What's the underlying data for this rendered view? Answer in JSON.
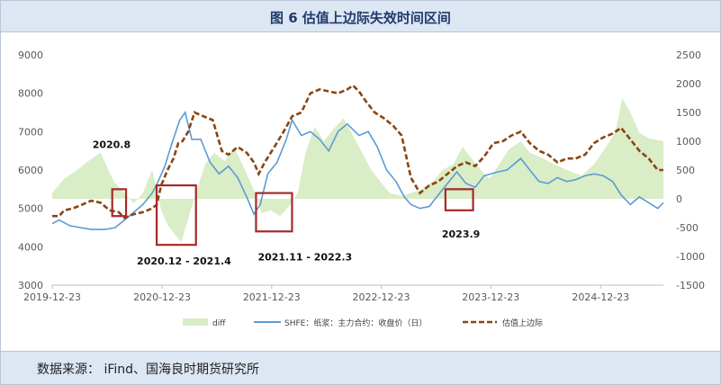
{
  "title": "图 6 估值上边际失效时间区间",
  "source": "数据来源： iFind、国海良时期货研究所",
  "chart_data": {
    "type": "line",
    "title": "图 6 估值上边际失效时间区间",
    "x_ticks": [
      "2019-12-23",
      "2020-12-23",
      "2021-12-23",
      "2022-12-23",
      "2023-12-23",
      "2024-12-23"
    ],
    "x_range": [
      "2019-12-23",
      "2025-07-20"
    ],
    "y_left_ticks": [
      "3000",
      "4000",
      "5000",
      "6000",
      "7000",
      "8000",
      "9000"
    ],
    "y_left_range": [
      3000,
      9000
    ],
    "y_right_ticks": [
      "-1500",
      "-1000",
      "-500",
      "0",
      "500",
      "1000",
      "1500",
      "2000",
      "2500"
    ],
    "y_right_range": [
      -1500,
      2500
    ],
    "grid": false,
    "legend_position": "bottom",
    "colors": {
      "diff": "#d9edc7",
      "shfe": "#5b9bd5",
      "upper": "#8b4513",
      "box": "#a52a2a"
    },
    "series": [
      {
        "name": "diff",
        "axis": "right",
        "style": "area",
        "points": [
          [
            "2019-12-23",
            100
          ],
          [
            "2020-02-01",
            350
          ],
          [
            "2020-03-15",
            500
          ],
          [
            "2020-04-20",
            650
          ],
          [
            "2020-06-01",
            800
          ],
          [
            "2020-07-15",
            300
          ],
          [
            "2020-08-20",
            100
          ],
          [
            "2020-09-20",
            -80
          ],
          [
            "2020-10-20",
            100
          ],
          [
            "2020-11-20",
            500
          ],
          [
            "2020-12-20",
            -200
          ],
          [
            "2021-01-10",
            -450
          ],
          [
            "2021-02-01",
            -600
          ],
          [
            "2021-02-25",
            -750
          ],
          [
            "2021-03-20",
            -350
          ],
          [
            "2021-04-15",
            100
          ],
          [
            "2021-05-15",
            600
          ],
          [
            "2021-06-15",
            800
          ],
          [
            "2021-07-20",
            650
          ],
          [
            "2021-08-20",
            900
          ],
          [
            "2021-09-25",
            500
          ],
          [
            "2021-10-25",
            150
          ],
          [
            "2021-11-20",
            -250
          ],
          [
            "2021-12-20",
            -200
          ],
          [
            "2022-01-20",
            -300
          ],
          [
            "2022-02-15",
            -150
          ],
          [
            "2022-03-20",
            100
          ],
          [
            "2022-04-15",
            800
          ],
          [
            "2022-05-15",
            1250
          ],
          [
            "2022-06-15",
            1000
          ],
          [
            "2022-07-15",
            1200
          ],
          [
            "2022-08-20",
            1400
          ],
          [
            "2022-09-20",
            1100
          ],
          [
            "2022-10-20",
            800
          ],
          [
            "2022-11-20",
            500
          ],
          [
            "2022-12-20",
            300
          ],
          [
            "2023-01-20",
            100
          ],
          [
            "2023-03-01",
            50
          ],
          [
            "2023-05-01",
            150
          ],
          [
            "2023-06-15",
            300
          ],
          [
            "2023-07-15",
            500
          ],
          [
            "2023-08-20",
            600
          ],
          [
            "2023-09-20",
            900
          ],
          [
            "2023-10-20",
            700
          ],
          [
            "2023-11-20",
            500
          ],
          [
            "2023-12-20",
            350
          ],
          [
            "2024-01-20",
            600
          ],
          [
            "2024-02-20",
            850
          ],
          [
            "2024-04-01",
            1000
          ],
          [
            "2024-05-01",
            800
          ],
          [
            "2024-06-15",
            700
          ],
          [
            "2024-07-20",
            600
          ],
          [
            "2024-09-01",
            500
          ],
          [
            "2024-10-20",
            400
          ],
          [
            "2024-12-01",
            600
          ],
          [
            "2025-01-10",
            900
          ],
          [
            "2025-02-10",
            1150
          ],
          [
            "2025-03-05",
            1750
          ],
          [
            "2025-04-01",
            1500
          ],
          [
            "2025-05-01",
            1150
          ],
          [
            "2025-06-01",
            1050
          ],
          [
            "2025-07-20",
            1000
          ]
        ]
      },
      {
        "name": "SHFE：纸浆：主力合约：收盘价（日）",
        "axis": "left",
        "style": "line",
        "points": [
          [
            "2019-12-23",
            4600
          ],
          [
            "2020-01-15",
            4700
          ],
          [
            "2020-02-20",
            4550
          ],
          [
            "2020-03-25",
            4500
          ],
          [
            "2020-05-01",
            4450
          ],
          [
            "2020-06-15",
            4450
          ],
          [
            "2020-07-20",
            4500
          ],
          [
            "2020-08-20",
            4700
          ],
          [
            "2020-09-20",
            4900
          ],
          [
            "2020-10-20",
            5100
          ],
          [
            "2020-11-20",
            5400
          ],
          [
            "2020-12-10",
            5700
          ],
          [
            "2021-01-01",
            6100
          ],
          [
            "2021-01-25",
            6700
          ],
          [
            "2021-02-20",
            7300
          ],
          [
            "2021-03-10",
            7500
          ],
          [
            "2021-04-01",
            6800
          ],
          [
            "2021-05-01",
            6800
          ],
          [
            "2021-06-01",
            6200
          ],
          [
            "2021-07-01",
            5900
          ],
          [
            "2021-08-01",
            6100
          ],
          [
            "2021-09-01",
            5800
          ],
          [
            "2021-10-01",
            5300
          ],
          [
            "2021-10-25",
            4850
          ],
          [
            "2021-11-15",
            5100
          ],
          [
            "2021-12-10",
            5900
          ],
          [
            "2022-01-10",
            6200
          ],
          [
            "2022-02-10",
            6800
          ],
          [
            "2022-03-01",
            7300
          ],
          [
            "2022-04-01",
            6900
          ],
          [
            "2022-05-01",
            7000
          ],
          [
            "2022-06-01",
            6800
          ],
          [
            "2022-07-01",
            6500
          ],
          [
            "2022-08-01",
            7000
          ],
          [
            "2022-09-01",
            7200
          ],
          [
            "2022-10-10",
            6900
          ],
          [
            "2022-11-10",
            7000
          ],
          [
            "2022-12-10",
            6600
          ],
          [
            "2023-01-10",
            6000
          ],
          [
            "2023-02-10",
            5700
          ],
          [
            "2023-03-10",
            5300
          ],
          [
            "2023-04-01",
            5100
          ],
          [
            "2023-05-01",
            5000
          ],
          [
            "2023-06-01",
            5050
          ],
          [
            "2023-07-01",
            5350
          ],
          [
            "2023-08-01",
            5650
          ],
          [
            "2023-09-01",
            5950
          ],
          [
            "2023-10-01",
            5650
          ],
          [
            "2023-11-01",
            5550
          ],
          [
            "2023-12-01",
            5850
          ],
          [
            "2024-01-15",
            5950
          ],
          [
            "2024-02-15",
            6000
          ],
          [
            "2024-04-01",
            6300
          ],
          [
            "2024-05-01",
            6000
          ],
          [
            "2024-06-01",
            5700
          ],
          [
            "2024-07-01",
            5650
          ],
          [
            "2024-08-01",
            5800
          ],
          [
            "2024-09-01",
            5700
          ],
          [
            "2024-10-01",
            5750
          ],
          [
            "2024-11-01",
            5850
          ],
          [
            "2024-12-01",
            5900
          ],
          [
            "2025-01-01",
            5850
          ],
          [
            "2025-02-01",
            5700
          ],
          [
            "2025-03-01",
            5350
          ],
          [
            "2025-04-01",
            5100
          ],
          [
            "2025-05-01",
            5300
          ],
          [
            "2025-06-01",
            5150
          ],
          [
            "2025-07-01",
            5000
          ],
          [
            "2025-07-20",
            5150
          ]
        ]
      },
      {
        "name": "估值上边际",
        "axis": "left",
        "style": "dashed",
        "points": [
          [
            "2019-12-23",
            4800
          ],
          [
            "2020-01-15",
            4800
          ],
          [
            "2020-02-01",
            4950
          ],
          [
            "2020-03-01",
            5000
          ],
          [
            "2020-04-01",
            5100
          ],
          [
            "2020-05-01",
            5200
          ],
          [
            "2020-06-01",
            5150
          ],
          [
            "2020-07-01",
            4950
          ],
          [
            "2020-08-01",
            4900
          ],
          [
            "2020-08-20",
            4750
          ],
          [
            "2020-09-20",
            4850
          ],
          [
            "2020-10-20",
            4900
          ],
          [
            "2020-11-20",
            5000
          ],
          [
            "2020-12-05",
            5100
          ],
          [
            "2020-12-20",
            5600
          ],
          [
            "2021-01-10",
            6000
          ],
          [
            "2021-01-30",
            6300
          ],
          [
            "2021-02-15",
            6700
          ],
          [
            "2021-03-01",
            6750
          ],
          [
            "2021-03-20",
            7000
          ],
          [
            "2021-04-10",
            7500
          ],
          [
            "2021-05-10",
            7400
          ],
          [
            "2021-06-10",
            7300
          ],
          [
            "2021-07-10",
            6500
          ],
          [
            "2021-08-01",
            6400
          ],
          [
            "2021-09-01",
            6600
          ],
          [
            "2021-10-01",
            6450
          ],
          [
            "2021-10-25",
            6200
          ],
          [
            "2021-11-10",
            5900
          ],
          [
            "2021-11-30",
            6200
          ],
          [
            "2022-01-01",
            6600
          ],
          [
            "2022-02-01",
            7000
          ],
          [
            "2022-03-01",
            7400
          ],
          [
            "2022-04-01",
            7500
          ],
          [
            "2022-05-01",
            8000
          ],
          [
            "2022-06-01",
            8100
          ],
          [
            "2022-07-01",
            8050
          ],
          [
            "2022-08-01",
            8000
          ],
          [
            "2022-09-01",
            8100
          ],
          [
            "2022-09-20",
            8200
          ],
          [
            "2022-10-10",
            8050
          ],
          [
            "2022-11-01",
            7800
          ],
          [
            "2022-12-01",
            7500
          ],
          [
            "2023-01-01",
            7350
          ],
          [
            "2023-02-01",
            7150
          ],
          [
            "2023-03-01",
            6900
          ],
          [
            "2023-04-01",
            5800
          ],
          [
            "2023-05-01",
            5400
          ],
          [
            "2023-06-01",
            5600
          ],
          [
            "2023-07-01",
            5700
          ],
          [
            "2023-08-01",
            5900
          ],
          [
            "2023-09-01",
            6100
          ],
          [
            "2023-10-01",
            6200
          ],
          [
            "2023-11-01",
            6100
          ],
          [
            "2023-12-01",
            6350
          ],
          [
            "2024-01-01",
            6700
          ],
          [
            "2024-02-01",
            6750
          ],
          [
            "2024-03-01",
            6900
          ],
          [
            "2024-04-01",
            7000
          ],
          [
            "2024-05-01",
            6700
          ],
          [
            "2024-06-01",
            6500
          ],
          [
            "2024-07-01",
            6400
          ],
          [
            "2024-08-01",
            6200
          ],
          [
            "2024-09-01",
            6300
          ],
          [
            "2024-10-01",
            6300
          ],
          [
            "2024-11-01",
            6400
          ],
          [
            "2024-12-01",
            6700
          ],
          [
            "2025-01-01",
            6850
          ],
          [
            "2025-02-01",
            6950
          ],
          [
            "2025-03-01",
            7100
          ],
          [
            "2025-04-01",
            6800
          ],
          [
            "2025-05-01",
            6500
          ],
          [
            "2025-06-01",
            6300
          ],
          [
            "2025-07-01",
            6000
          ],
          [
            "2025-07-20",
            6000
          ]
        ]
      }
    ],
    "annotations": [
      {
        "label": "2020.8",
        "box": {
          "x": [
            "2020-07-10",
            "2020-08-25"
          ],
          "y": [
            4800,
            5500
          ]
        }
      },
      {
        "label": "2020.12 - 2021.4",
        "box": {
          "x": [
            "2020-12-05",
            "2021-04-15"
          ],
          "y": [
            4050,
            5600
          ]
        }
      },
      {
        "label": "2021.11 - 2022.3",
        "box": {
          "x": [
            "2021-11-01",
            "2022-03-01"
          ],
          "y": [
            4400,
            5400
          ]
        }
      },
      {
        "label": "2023.9",
        "box": {
          "x": [
            "2023-07-25",
            "2023-10-25"
          ],
          "y": [
            4950,
            5500
          ]
        }
      }
    ]
  }
}
